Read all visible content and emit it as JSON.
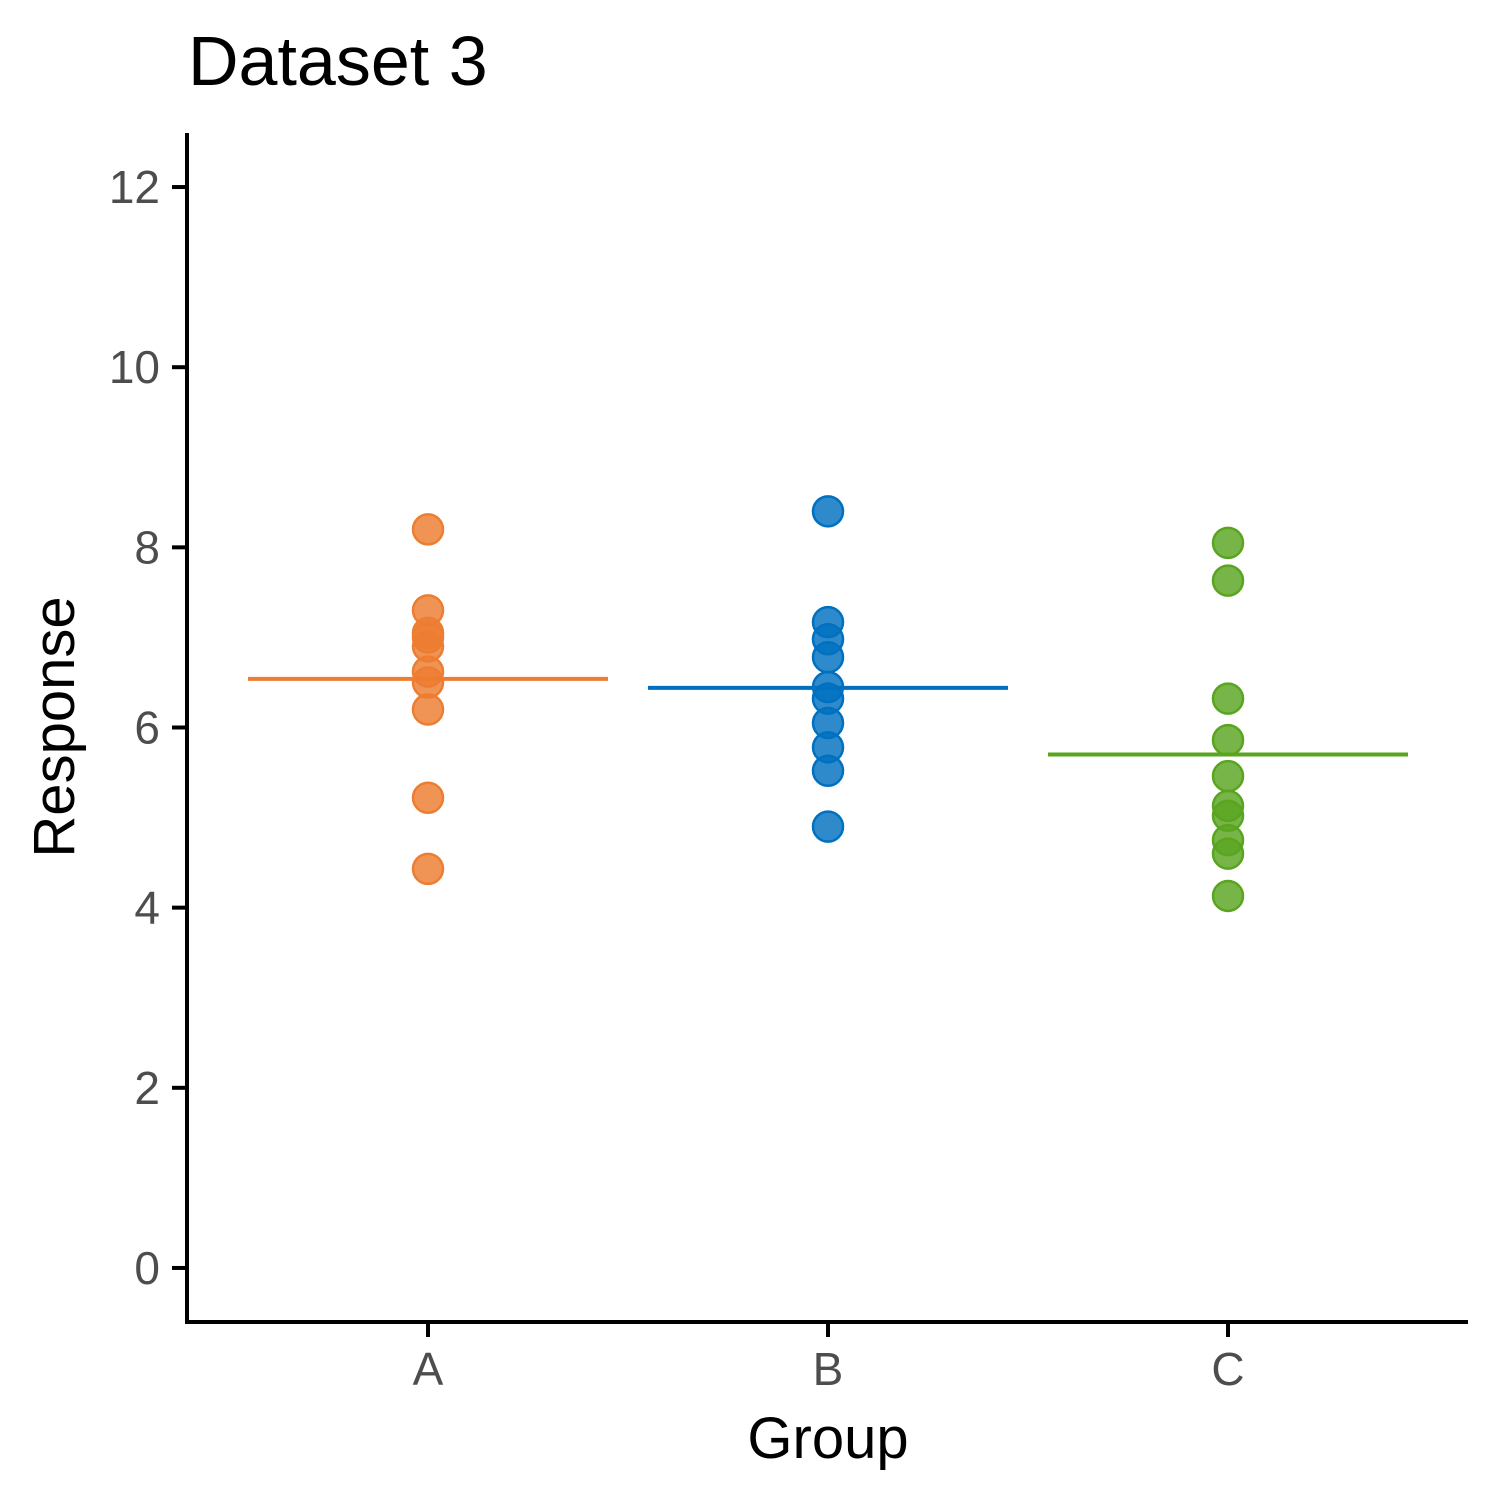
{
  "chart_data": {
    "type": "scatter",
    "title": "Dataset 3",
    "xlabel": "Group",
    "ylabel": "Response",
    "categories": [
      "A",
      "B",
      "C"
    ],
    "ylim": [
      -0.6,
      12.6
    ],
    "yticks": [
      0,
      2,
      4,
      6,
      8,
      10,
      12
    ],
    "ytick_labels": [
      "0",
      "2",
      "4",
      "6",
      "8",
      "10",
      "12"
    ],
    "grid": false,
    "legend": "none",
    "series": [
      {
        "category": "A",
        "color": "#ed7d31",
        "values": [
          8.2,
          7.3,
          7.05,
          7.0,
          6.9,
          6.62,
          6.5,
          6.2,
          5.22,
          4.43
        ],
        "mean": 6.54
      },
      {
        "category": "B",
        "color": "#0070c0",
        "values": [
          8.4,
          7.17,
          6.98,
          6.78,
          6.45,
          6.32,
          6.05,
          5.78,
          5.52,
          4.9
        ],
        "mean": 6.44
      },
      {
        "category": "C",
        "color": "#5aa520",
        "values": [
          8.05,
          7.63,
          6.32,
          5.86,
          5.46,
          5.13,
          5.02,
          4.75,
          4.6,
          4.13
        ],
        "mean": 5.7
      }
    ]
  }
}
